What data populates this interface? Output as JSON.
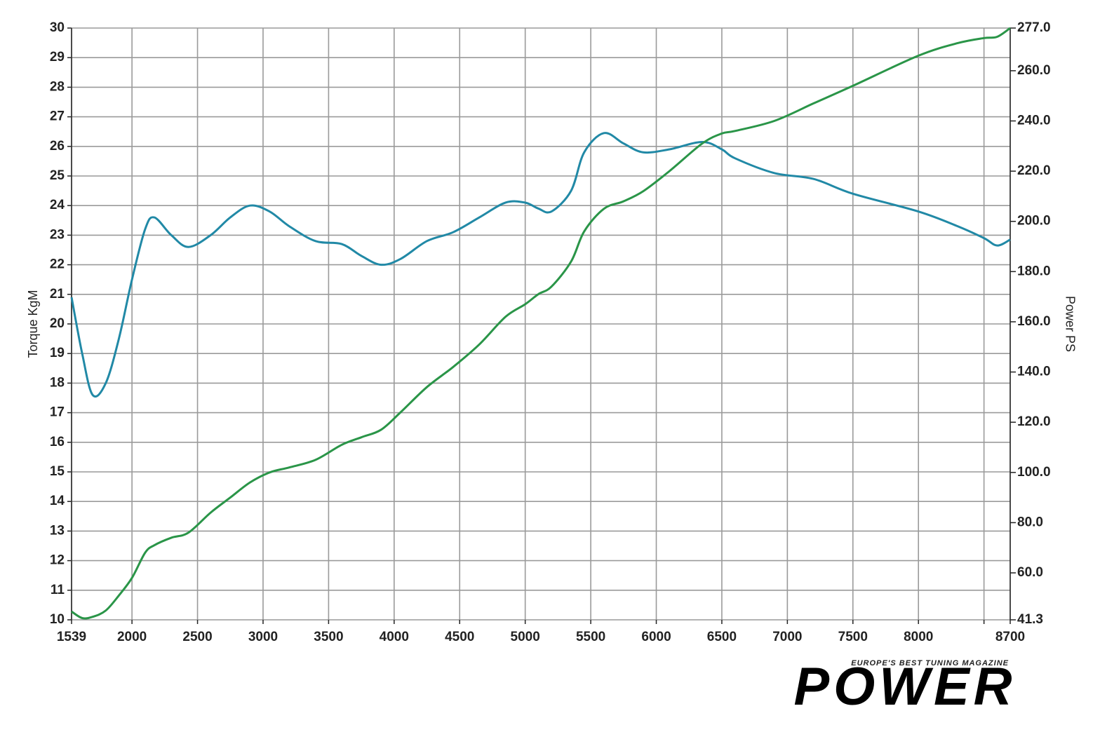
{
  "chart_data": {
    "type": "line",
    "ylabel": "Torque KgM",
    "y2label": "Power PS",
    "x": [
      1539,
      1620,
      1700,
      1800,
      1900,
      2000,
      2100,
      2170,
      2300,
      2430,
      2600,
      2750,
      2900,
      3050,
      3200,
      3400,
      3600,
      3750,
      3900,
      4050,
      4250,
      4450,
      4650,
      4850,
      5000,
      5100,
      5200,
      5350,
      5450,
      5600,
      5750,
      5900,
      6100,
      6350,
      6500,
      6600,
      6900,
      7200,
      7500,
      8000,
      8300,
      8500,
      8600,
      8700
    ],
    "series": [
      {
        "color": "#2189a6",
        "axis": "y",
        "values": [
          20.9,
          19.0,
          17.6,
          18.0,
          19.5,
          21.5,
          23.2,
          23.6,
          23.0,
          22.6,
          23.0,
          23.6,
          24.0,
          23.8,
          23.3,
          22.8,
          22.7,
          22.3,
          22.0,
          22.2,
          22.8,
          23.1,
          23.6,
          24.1,
          24.1,
          23.9,
          23.8,
          24.5,
          25.8,
          26.45,
          26.1,
          25.8,
          25.9,
          26.15,
          25.9,
          25.6,
          25.1,
          24.9,
          24.4,
          23.8,
          23.3,
          22.9,
          22.65,
          22.85
        ]
      },
      {
        "color": "#2a9548",
        "axis": "y2",
        "values": [
          44.6,
          42,
          42.5,
          45,
          51,
          58,
          68,
          71,
          74,
          76,
          84,
          90,
          96,
          100,
          102,
          105,
          111,
          114,
          117,
          124,
          134,
          142,
          151,
          162,
          167,
          171,
          174,
          184,
          196,
          205,
          208,
          212,
          220,
          231,
          235,
          236,
          240,
          247,
          254,
          266,
          271,
          273,
          273.5,
          277
        ]
      }
    ],
    "xlim": [
      1539,
      8700
    ],
    "xticks": [
      1539,
      2000,
      2500,
      3000,
      3500,
      4000,
      4500,
      5000,
      5500,
      6000,
      6500,
      7000,
      7500,
      8000,
      {
        "value": 8500,
        "label": null
      },
      8700
    ],
    "ylim": [
      10,
      30
    ],
    "yticks": [
      10,
      11,
      12,
      13,
      14,
      15,
      16,
      17,
      18,
      19,
      20,
      21,
      22,
      23,
      24,
      25,
      26,
      27,
      28,
      29,
      30
    ],
    "y2lim": [
      41.3,
      277
    ],
    "y2ticks": [
      {
        "value": 41.3,
        "label": "41.3"
      },
      {
        "value": 60,
        "label": "60.0"
      },
      {
        "value": 80,
        "label": "80.0"
      },
      {
        "value": 100,
        "label": "100.0"
      },
      {
        "value": 120,
        "label": "120.0"
      },
      {
        "value": 140,
        "label": "140.0"
      },
      {
        "value": 160,
        "label": "160.0"
      },
      {
        "value": 180,
        "label": "180.0"
      },
      {
        "value": 200,
        "label": "200.0"
      },
      {
        "value": 220,
        "label": "220.0"
      },
      {
        "value": 240,
        "label": "240.0"
      },
      {
        "value": 260,
        "label": "260.0"
      },
      {
        "value": 277,
        "label": "277.0"
      }
    ],
    "grid": true
  },
  "logo": {
    "tagline": "EUROPE'S BEST TUNING MAGAZINE",
    "name": "POWER"
  }
}
